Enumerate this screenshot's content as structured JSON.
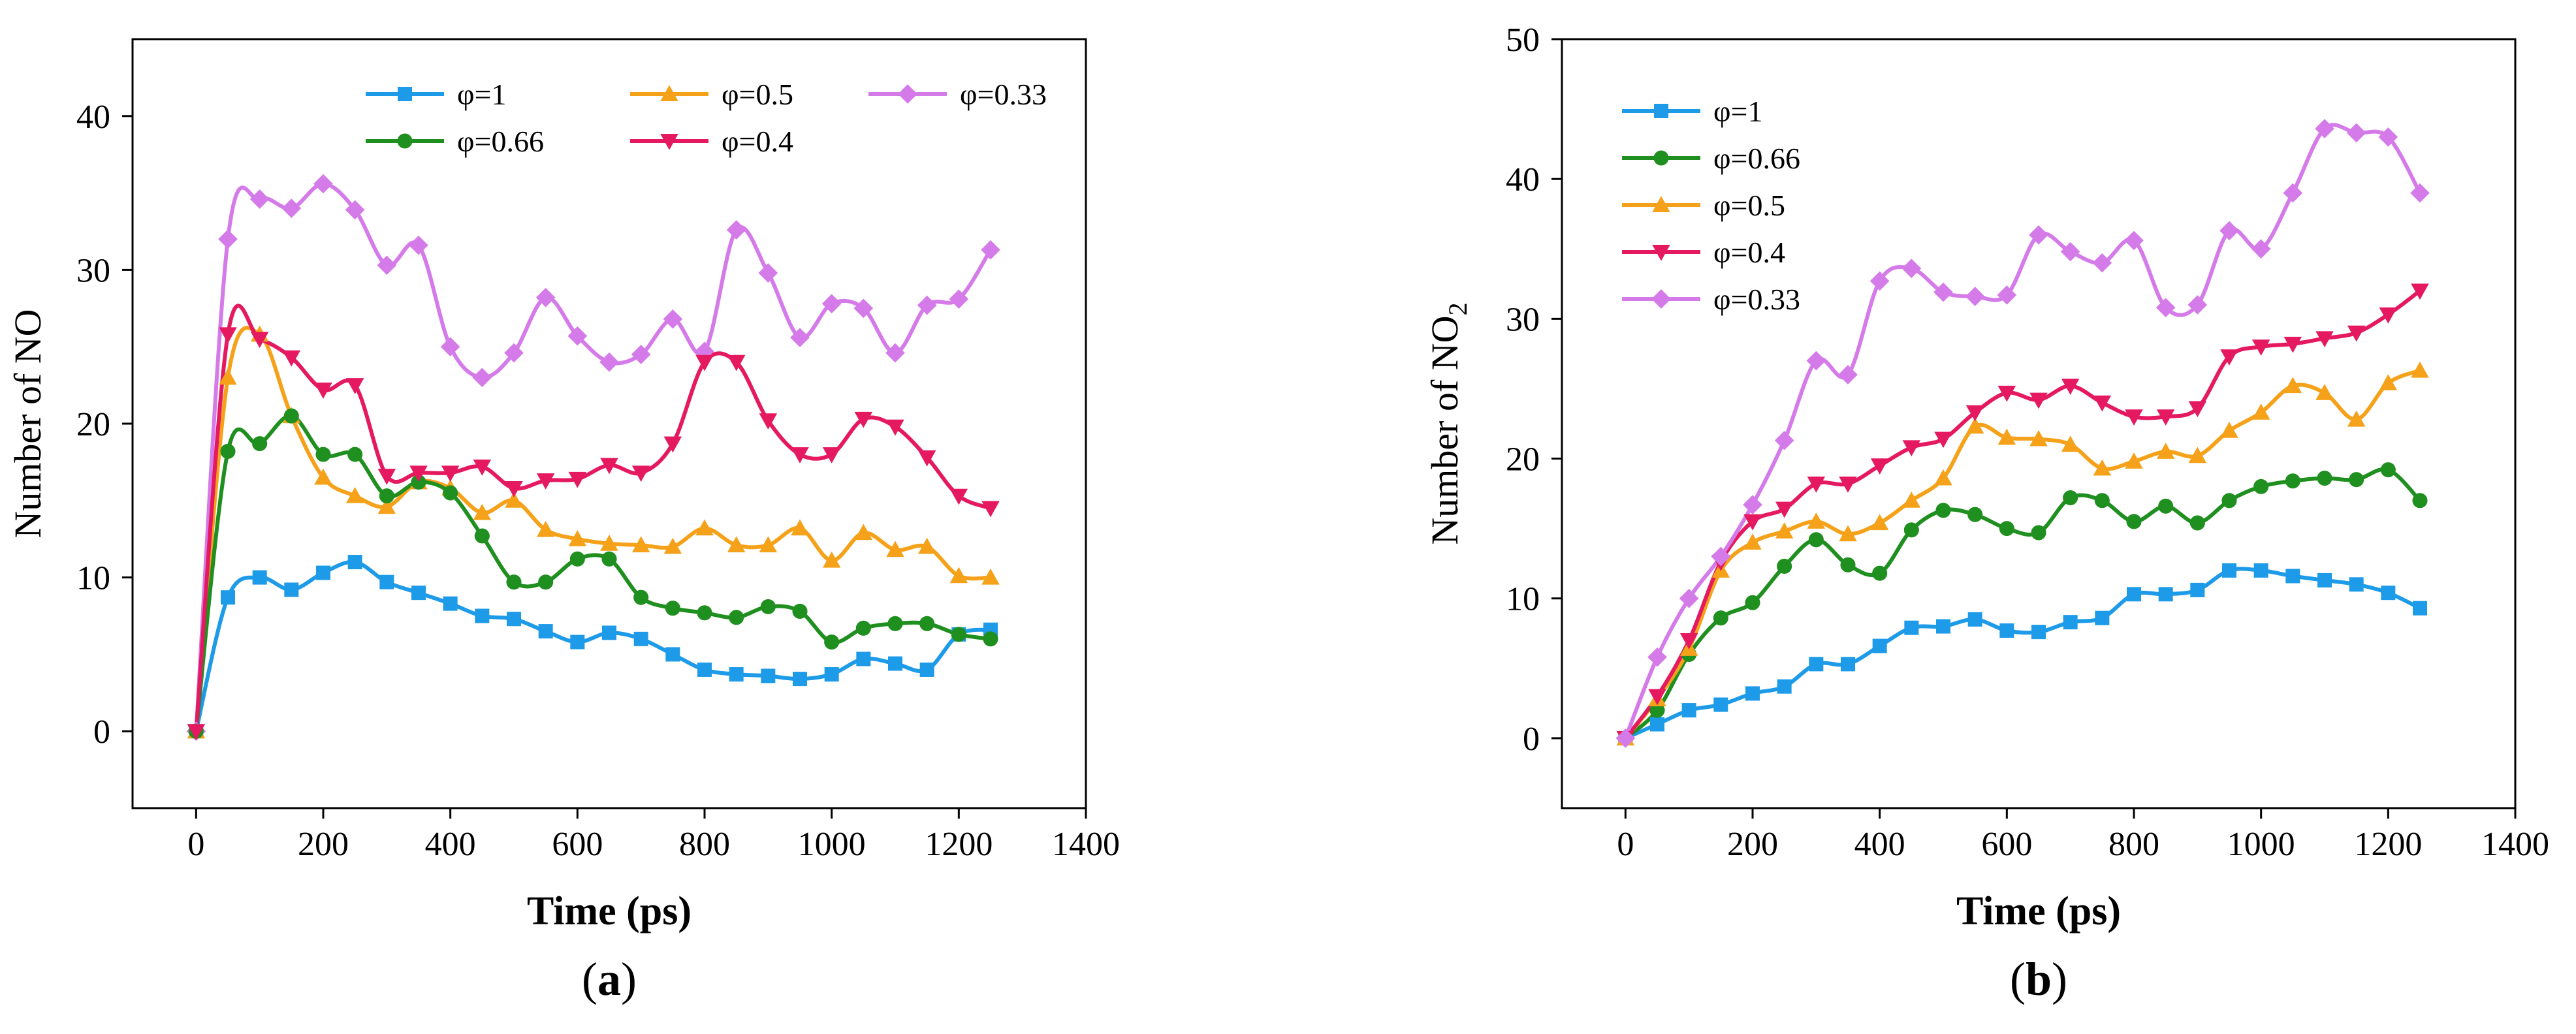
{
  "panels": [
    {
      "id": "a",
      "panel_label": "a",
      "legend_order": [
        0,
        3,
        1,
        4,
        2
      ],
      "chart_data": {
        "type": "line",
        "title": "",
        "xlabel": "Time (ps)",
        "ylabel": "Number of NO",
        "ylabel_subscript": "",
        "xlim": [
          -100,
          1400
        ],
        "ylim": [
          -5,
          45
        ],
        "xticks": [
          0,
          200,
          400,
          600,
          800,
          1000,
          1200,
          1400
        ],
        "yticks": [
          0,
          10,
          20,
          30,
          40
        ],
        "legend_position": "top-center (3 columns)",
        "x": [
          0,
          50,
          100,
          150,
          200,
          250,
          300,
          350,
          400,
          450,
          500,
          550,
          600,
          650,
          700,
          750,
          800,
          850,
          900,
          950,
          1000,
          1050,
          1100,
          1150,
          1200,
          1250
        ],
        "series": [
          {
            "name": "φ=1",
            "color": "#1e9be8",
            "marker": "square",
            "values": [
              0,
              8.7,
              10,
              9.2,
              10.3,
              11,
              9.7,
              9,
              8.3,
              7.5,
              7.3,
              6.5,
              5.8,
              6.4,
              6,
              5,
              4,
              3.7,
              3.6,
              3.4,
              3.7,
              4.7,
              4.4,
              4,
              6.3,
              6.6
            ]
          },
          {
            "name": "φ=0.5",
            "color": "#f5a21a",
            "marker": "triangle-up",
            "values": [
              0,
              23,
              25.8,
              20.5,
              16.5,
              15.3,
              14.6,
              16.2,
              15.8,
              14.2,
              15,
              13.1,
              12.5,
              12.2,
              12.1,
              12,
              13.2,
              12.1,
              12.1,
              13.2,
              11.1,
              12.9,
              11.8,
              12,
              10.1,
              10
            ]
          },
          {
            "name": "φ=0.33",
            "color": "#d57be9",
            "marker": "diamond",
            "values": [
              0,
              32,
              34.6,
              34,
              35.6,
              33.9,
              30.3,
              31.6,
              25,
              23,
              24.6,
              28.2,
              25.7,
              24,
              24.5,
              26.8,
              24.7,
              32.6,
              29.8,
              25.6,
              27.8,
              27.5,
              24.6,
              27.7,
              28.1,
              31.3
            ]
          },
          {
            "name": "φ=0.66",
            "color": "#1f8f1f",
            "marker": "circle",
            "values": [
              0,
              18.2,
              18.7,
              20.5,
              18,
              18,
              15.3,
              16.2,
              15.5,
              12.7,
              9.7,
              9.7,
              11.2,
              11.2,
              8.7,
              8,
              7.7,
              7.4,
              8.1,
              7.8,
              5.8,
              6.7,
              7,
              7,
              6.3,
              6
            ]
          },
          {
            "name": "φ=0.4",
            "color": "#e5195f",
            "marker": "triangle-down",
            "values": [
              0,
              25.8,
              25.5,
              24.3,
              22.2,
              22.5,
              16.6,
              16.8,
              16.8,
              17.2,
              15.8,
              16.3,
              16.4,
              17.3,
              16.8,
              18.7,
              24,
              24,
              20.2,
              18,
              18,
              20.3,
              19.8,
              17.8,
              15.3,
              14.5
            ]
          }
        ]
      }
    },
    {
      "id": "b",
      "panel_label": "b",
      "legend_order": [
        0,
        1,
        2,
        3,
        4
      ],
      "chart_data": {
        "type": "line",
        "title": "",
        "xlabel": "Time (ps)",
        "ylabel": "Number of NO",
        "ylabel_subscript": "2",
        "xlim": [
          -100,
          1400
        ],
        "ylim": [
          -5,
          50
        ],
        "xticks": [
          0,
          200,
          400,
          600,
          800,
          1000,
          1200,
          1400
        ],
        "yticks": [
          0,
          10,
          20,
          30,
          40,
          50
        ],
        "legend_position": "top-left (1 column)",
        "x": [
          0,
          50,
          100,
          150,
          200,
          250,
          300,
          350,
          400,
          450,
          500,
          550,
          600,
          650,
          700,
          750,
          800,
          850,
          900,
          950,
          1000,
          1050,
          1100,
          1150,
          1200,
          1250
        ],
        "series": [
          {
            "name": "φ=1",
            "color": "#1e9be8",
            "marker": "square",
            "values": [
              0,
              1,
              2,
              2.4,
              3.2,
              3.7,
              5.3,
              5.3,
              6.6,
              7.9,
              8,
              8.5,
              7.7,
              7.6,
              8.3,
              8.6,
              10.3,
              10.3,
              10.6,
              12,
              12,
              11.6,
              11.3,
              11,
              10.4,
              9.3
            ]
          },
          {
            "name": "φ=0.66",
            "color": "#1f8f1f",
            "marker": "circle",
            "values": [
              0,
              2,
              6,
              8.6,
              9.7,
              12.3,
              14.2,
              12.4,
              11.8,
              14.9,
              16.3,
              16,
              15,
              14.7,
              17.2,
              17,
              15.5,
              16.6,
              15.4,
              17,
              18,
              18.4,
              18.6,
              18.5,
              19.2,
              17
            ]
          },
          {
            "name": "φ=0.5",
            "color": "#f5a21a",
            "marker": "triangle-up",
            "values": [
              0,
              2.8,
              6.4,
              12,
              14,
              14.8,
              15.5,
              14.6,
              15.4,
              17,
              18.6,
              22.3,
              21.5,
              21.4,
              21,
              19.3,
              19.8,
              20.5,
              20.2,
              22,
              23.3,
              25.2,
              24.7,
              22.8,
              25.4,
              26.3
            ]
          },
          {
            "name": "φ=0.4",
            "color": "#e5195f",
            "marker": "triangle-down",
            "values": [
              0,
              3,
              7,
              12.6,
              15.5,
              16.4,
              18.2,
              18.2,
              19.5,
              20.8,
              21.4,
              23.3,
              24.7,
              24.2,
              25.2,
              24,
              23,
              23,
              23.6,
              27.3,
              28,
              28.2,
              28.6,
              29,
              30.3,
              32
            ]
          },
          {
            "name": "φ=0.33",
            "color": "#d57be9",
            "marker": "diamond",
            "values": [
              0,
              5.8,
              10,
              13,
              16.7,
              21.3,
              27,
              26,
              32.7,
              33.6,
              31.9,
              31.6,
              31.7,
              36,
              34.8,
              34,
              35.6,
              30.8,
              31,
              36.3,
              35,
              39,
              43.6,
              43.3,
              43,
              39
            ]
          }
        ]
      }
    }
  ]
}
